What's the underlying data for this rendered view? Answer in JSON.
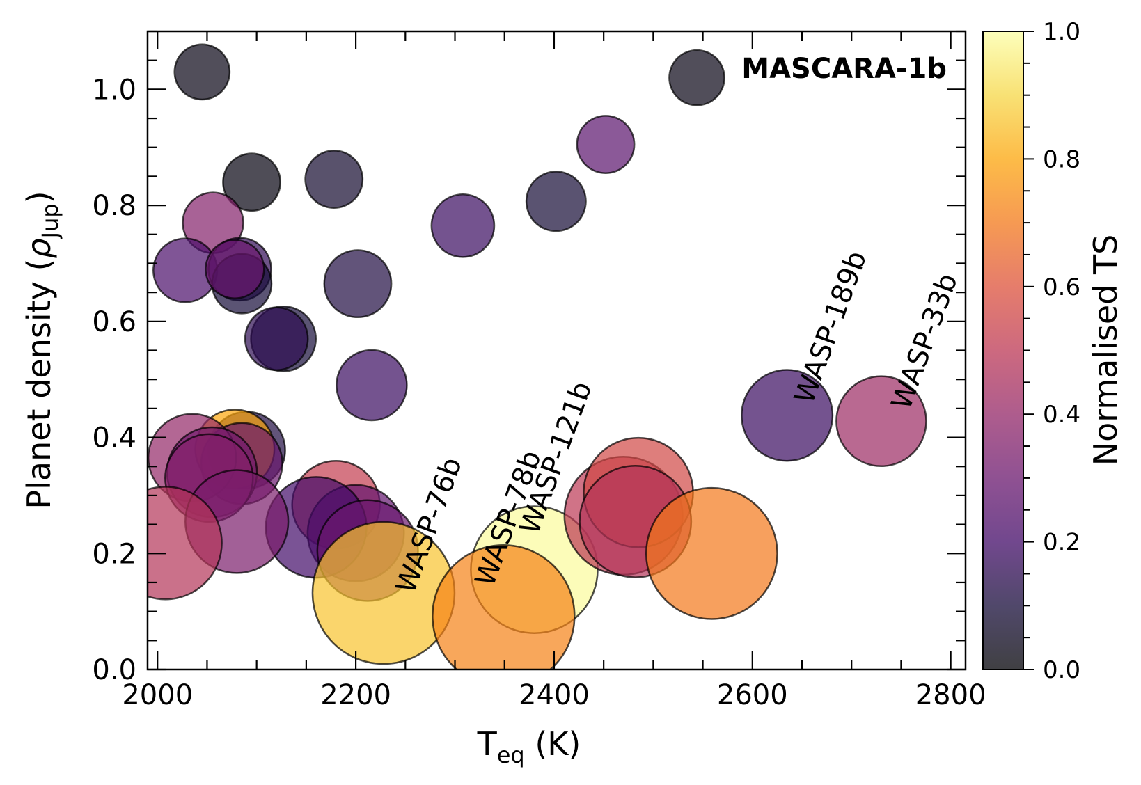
{
  "chart_data": {
    "type": "scatter",
    "badge": "MASCARA-1b",
    "xlabel_main": "T",
    "xlabel_sub": "eq",
    "xlabel_unit": " (K)",
    "ylabel_main": "Planet density (",
    "ylabel_rho": "ρ",
    "ylabel_sub": "Jup",
    "ylabel_close": ")",
    "xlim": [
      1990,
      2815
    ],
    "ylim": [
      0.0,
      1.1
    ],
    "x_ticks": [
      "2000",
      "2200",
      "2400",
      "2600",
      "2800"
    ],
    "y_ticks": [
      "0.0",
      "0.2",
      "0.4",
      "0.6",
      "0.8",
      "1.0"
    ],
    "colorbar": {
      "label": "Normalised TS",
      "colormap": "inferno",
      "range": [
        0.0,
        1.0
      ],
      "ticks": [
        "0.0",
        "0.2",
        "0.4",
        "0.6",
        "0.8",
        "1.0"
      ]
    },
    "points": [
      {
        "x": 2045,
        "y": 1.03,
        "size": 0.2,
        "c": 0.03
      },
      {
        "x": 2544,
        "y": 1.02,
        "size": 0.2,
        "c": 0.03
      },
      {
        "x": 2452,
        "y": 0.905,
        "size": 0.22,
        "c": 0.26
      },
      {
        "x": 2095,
        "y": 0.84,
        "size": 0.22,
        "c": 0.02
      },
      {
        "x": 2178,
        "y": 0.845,
        "size": 0.22,
        "c": 0.08
      },
      {
        "x": 2402,
        "y": 0.807,
        "size": 0.24,
        "c": 0.09
      },
      {
        "x": 2056,
        "y": 0.77,
        "size": 0.25,
        "c": 0.36
      },
      {
        "x": 2308,
        "y": 0.765,
        "size": 0.27,
        "c": 0.18
      },
      {
        "x": 2028,
        "y": 0.688,
        "size": 0.28,
        "c": 0.22
      },
      {
        "x": 2083,
        "y": 0.69,
        "size": 0.27,
        "c": 0.16
      },
      {
        "x": 2085,
        "y": 0.665,
        "size": 0.24,
        "c": 0.1
      },
      {
        "x": 2078,
        "y": 0.69,
        "size": 0.23,
        "c": 0.3
      },
      {
        "x": 2202,
        "y": 0.665,
        "size": 0.31,
        "c": 0.12
      },
      {
        "x": 2127,
        "y": 0.57,
        "size": 0.29,
        "c": 0.1
      },
      {
        "x": 2120,
        "y": 0.57,
        "size": 0.27,
        "c": 0.15
      },
      {
        "x": 2216,
        "y": 0.49,
        "size": 0.34,
        "c": 0.18
      },
      {
        "x": 2635,
        "y": 0.438,
        "size": 0.53,
        "c": 0.18
      },
      {
        "x": 2730,
        "y": 0.428,
        "size": 0.52,
        "c": 0.42
      },
      {
        "x": 2090,
        "y": 0.378,
        "size": 0.4,
        "c": 0.12
      },
      {
        "x": 2078,
        "y": 0.38,
        "size": 0.42,
        "c": 0.8
      },
      {
        "x": 2085,
        "y": 0.355,
        "size": 0.44,
        "c": 0.3
      },
      {
        "x": 2035,
        "y": 0.365,
        "size": 0.5,
        "c": 0.4
      },
      {
        "x": 2055,
        "y": 0.34,
        "size": 0.52,
        "c": 0.32
      },
      {
        "x": 2052,
        "y": 0.33,
        "size": 0.5,
        "c": 0.36
      },
      {
        "x": 2180,
        "y": 0.284,
        "size": 0.5,
        "c": 0.52
      },
      {
        "x": 2200,
        "y": 0.235,
        "size": 0.58,
        "c": 0.28
      },
      {
        "x": 2160,
        "y": 0.245,
        "size": 0.62,
        "c": 0.2
      },
      {
        "x": 2080,
        "y": 0.255,
        "size": 0.64,
        "c": 0.34
      },
      {
        "x": 2008,
        "y": 0.218,
        "size": 0.73,
        "c": 0.48
      },
      {
        "x": 2212,
        "y": 0.205,
        "size": 0.62,
        "c": 0.3
      },
      {
        "x": 2228,
        "y": 0.132,
        "size": 1.0,
        "c": 0.86,
        "label": "WASP-76b"
      },
      {
        "x": 2380,
        "y": 0.172,
        "size": 0.86,
        "c": 0.99,
        "label": "WASP-121b"
      },
      {
        "x": 2349,
        "y": 0.092,
        "size": 1.0,
        "c": 0.72,
        "label": "WASP-78b"
      },
      {
        "x": 2470,
        "y": 0.265,
        "size": 0.78,
        "c": 0.5
      },
      {
        "x": 2485,
        "y": 0.305,
        "size": 0.7,
        "c": 0.56
      },
      {
        "x": 2482,
        "y": 0.255,
        "size": 0.72,
        "c": 0.48
      },
      {
        "x": 2559,
        "y": 0.2,
        "size": 0.9,
        "c": 0.7
      }
    ],
    "annotations": [
      {
        "text": "WASP-76b",
        "x": 2258,
        "y": 0.128
      },
      {
        "text": "WASP-78b",
        "x": 2338,
        "y": 0.14
      },
      {
        "text": "WASP-121b",
        "x": 2383,
        "y": 0.23
      },
      {
        "text": "WASP-189b",
        "x": 2660,
        "y": 0.455
      },
      {
        "text": "WASP-33b",
        "x": 2758,
        "y": 0.445
      }
    ]
  }
}
